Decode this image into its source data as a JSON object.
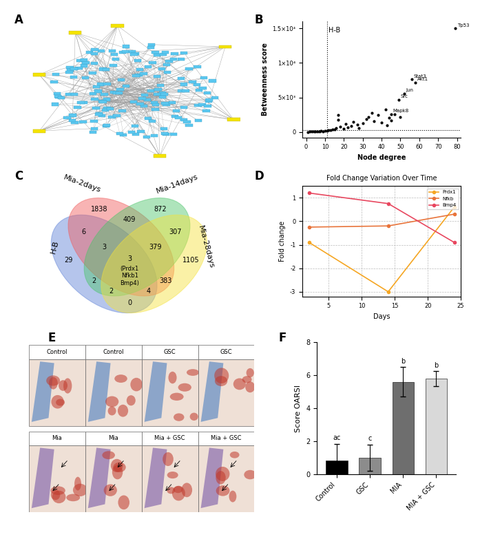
{
  "panel_labels": [
    "A",
    "B",
    "C",
    "D",
    "E",
    "F"
  ],
  "chart_data": [
    {
      "type": "scatter",
      "x_label": "Node degree",
      "y_label": "Betweenness score",
      "x": [
        1,
        2,
        3,
        4,
        5,
        6,
        7,
        8,
        9,
        10,
        11,
        12,
        13,
        14,
        15,
        16,
        17,
        17,
        18,
        20,
        21,
        22,
        24,
        25,
        27,
        28,
        30,
        32,
        33,
        35,
        36,
        38,
        40,
        42,
        43,
        44,
        45,
        47,
        50,
        79,
        56,
        58,
        52,
        49,
        45
      ],
      "values": [
        0,
        20,
        40,
        60,
        30,
        80,
        100,
        120,
        90,
        150,
        200,
        300,
        250,
        400,
        350,
        600,
        1800,
        2500,
        800,
        500,
        1200,
        700,
        900,
        1500,
        1100,
        600,
        1300,
        1900,
        2200,
        2800,
        1600,
        2500,
        1400,
        3300,
        1000,
        2100,
        1700,
        2600,
        2200,
        15000,
        7600,
        7200,
        5600,
        4700,
        2600
      ],
      "point_labels": [
        null,
        null,
        null,
        null,
        null,
        null,
        null,
        null,
        null,
        null,
        null,
        null,
        null,
        null,
        null,
        null,
        null,
        null,
        null,
        null,
        null,
        null,
        null,
        null,
        null,
        null,
        null,
        null,
        null,
        null,
        null,
        null,
        null,
        null,
        null,
        null,
        null,
        null,
        null,
        "Tp53",
        "Stat3",
        "Akt1",
        "Jun",
        "Src",
        "Mapk8"
      ],
      "threshold_x": 11,
      "threshold_label": "H-B",
      "threshold_y": 300,
      "xlim": [
        -2,
        82
      ],
      "ylim": [
        -800,
        16000
      ],
      "xticks": [
        0,
        10,
        20,
        30,
        40,
        50,
        60,
        70,
        80
      ],
      "yticks": [
        0,
        {
          "value": 5000,
          "label": "5×10³"
        },
        {
          "value": 10000,
          "label": "1×10⁴"
        },
        {
          "value": 15000,
          "label": "1.5×10⁴"
        }
      ],
      "color": "#000000",
      "marker": "o"
    },
    {
      "type": "line",
      "title": "Fold Change Variation Over Time",
      "x_label": "Days",
      "y_label": "Fold change",
      "x": [
        2,
        14,
        24
      ],
      "series": [
        {
          "name": "Prdx1",
          "color": "#f5a623",
          "values": [
            -0.9,
            -3.0,
            0.6
          ]
        },
        {
          "name": "Nfkb",
          "color": "#e8743b",
          "values": [
            -0.25,
            -0.2,
            0.3
          ]
        },
        {
          "name": "Bmp4",
          "color": "#e8475f",
          "values": [
            1.2,
            0.75,
            -0.9
          ]
        }
      ],
      "xlim": [
        1,
        25
      ],
      "ylim": [
        -3.2,
        1.5
      ],
      "xticks": [
        5,
        10,
        15,
        20,
        25
      ],
      "yticks": [
        -3,
        -2,
        -1,
        0,
        1
      ],
      "grid": true,
      "legend": "upper right",
      "marker": "o"
    },
    {
      "type": "bar",
      "y_label": "Score OARSI",
      "categories": [
        "Control",
        "GSC",
        "MIA",
        "MIA + GSC"
      ],
      "values": [
        0.85,
        1.0,
        5.6,
        5.8
      ],
      "errors": [
        1.0,
        0.8,
        0.9,
        0.45
      ],
      "letters": [
        "ac",
        "c",
        "b",
        "b"
      ],
      "colors": [
        "#000000",
        "#8c8c8c",
        "#6e6e6e",
        "#d9d9d9"
      ],
      "ylim": [
        0,
        8
      ],
      "yticks": [
        0,
        2,
        4,
        6,
        8
      ]
    }
  ],
  "venn": {
    "sets": [
      {
        "name": "H-B",
        "color": "#5b7fd6"
      },
      {
        "name": "Mia-2days",
        "color": "#f05a5a"
      },
      {
        "name": "Mia-14days",
        "color": "#4cc46a"
      },
      {
        "name": "Mia-28days",
        "color": "#f5e23a"
      }
    ],
    "regions": [
      {
        "sets": [
          "H-B"
        ],
        "count": 29
      },
      {
        "sets": [
          "Mia-2days"
        ],
        "count": 1838
      },
      {
        "sets": [
          "Mia-14days"
        ],
        "count": 872
      },
      {
        "sets": [
          "Mia-28days"
        ],
        "count": 1105
      },
      {
        "sets": [
          "H-B",
          "Mia-2days"
        ],
        "count": 6
      },
      {
        "sets": [
          "Mia-2days",
          "Mia-14days"
        ],
        "count": 409
      },
      {
        "sets": [
          "Mia-14days",
          "Mia-28days"
        ],
        "count": 307
      },
      {
        "sets": [
          "Mia-2days",
          "Mia-28days"
        ],
        "count": 383
      },
      {
        "sets": [
          "H-B",
          "Mia-14days"
        ],
        "count": 2
      },
      {
        "sets": [
          "H-B",
          "Mia-28days"
        ],
        "count": 0
      },
      {
        "sets": [
          "H-B",
          "Mia-2days",
          "Mia-14days"
        ],
        "count": 3
      },
      {
        "sets": [
          "Mia-2days",
          "Mia-14days",
          "Mia-28days"
        ],
        "count": 379
      },
      {
        "sets": [
          "H-B",
          "Mia-14days",
          "Mia-28days"
        ],
        "count": 2
      },
      {
        "sets": [
          "H-B",
          "Mia-2days",
          "Mia-28days"
        ],
        "count": 4
      },
      {
        "sets": [
          "H-B",
          "Mia-2days",
          "Mia-14days",
          "Mia-28days"
        ],
        "count": 3,
        "genes": [
          "(Prdx1",
          "Nfkb1",
          "Bmp4)"
        ]
      }
    ]
  },
  "histology": {
    "rows": [
      [
        "Control",
        "Control",
        "GSC",
        "GSC"
      ],
      [
        "Mia",
        "Mia",
        "Mia + GSC",
        "Mia + GSC"
      ]
    ]
  }
}
